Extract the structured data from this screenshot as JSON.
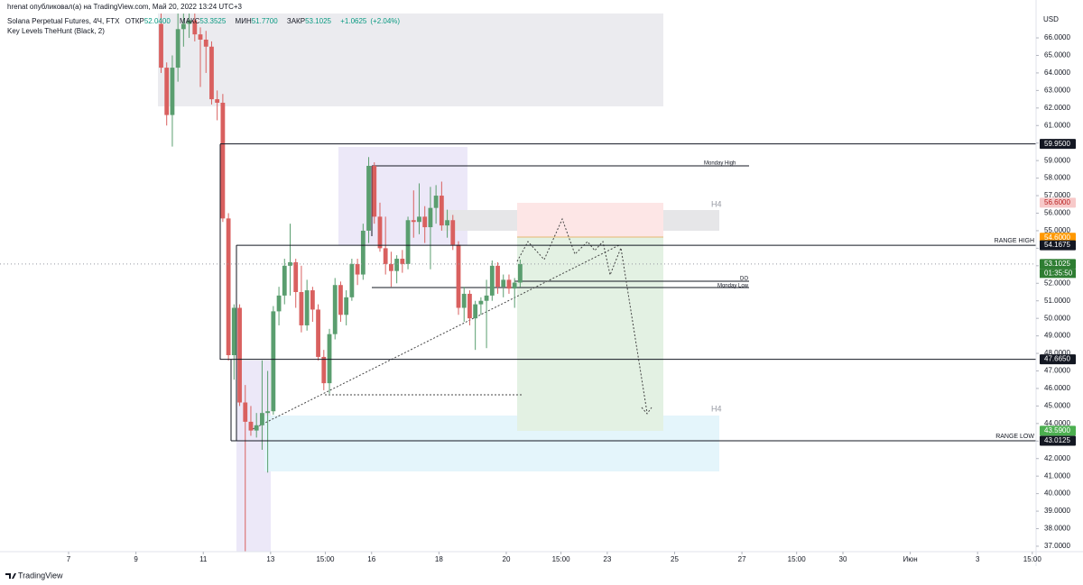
{
  "attribution": "hrenat опубликовал(а) на TradingView.com, Май 20, 2022 13:24 UTC+3",
  "footer": "TradingView",
  "chart_data": {
    "type": "candlestick",
    "title": "Solana Perpetual Futures, 4Ч, FTX",
    "ohlc": [
      {
        "name": "ОТКР",
        "value": 52.04,
        "label": "52.0400"
      },
      {
        "name": "МАКС",
        "value": 53.3525,
        "label": "53.3525"
      },
      {
        "name": "МИН",
        "value": 51.77,
        "label": "51.7700"
      },
      {
        "name": "ЗАКР",
        "value": 53.1025,
        "label": "53.1025"
      }
    ],
    "change": {
      "value": 1.0625,
      "label": "+1.0625"
    },
    "change_pct": {
      "value": 2.04,
      "label": "(+2.04%)"
    },
    "indicator": "Key Levels TheHunt (Black, 2)",
    "currency": "USD",
    "up_color": "#5a9e6f",
    "down_color": "#d9605f",
    "x": [
      9.667,
      9.833,
      10,
      10.167,
      10.333,
      10.5,
      10.667,
      10.833,
      11,
      11.167,
      11.333,
      11.5,
      11.667,
      11.833,
      12,
      12.167,
      12.333,
      12.5,
      12.667,
      12.833,
      13,
      13.167,
      13.333,
      13.5,
      13.667,
      13.833,
      14,
      14.167,
      14.333,
      14.5,
      14.667,
      14.833,
      15,
      15.167,
      15.333,
      15.5,
      15.667,
      15.833,
      16,
      16.167,
      16.333,
      16.5,
      16.667,
      16.833,
      17,
      17.167,
      17.333,
      17.5,
      17.667,
      17.833,
      18,
      18.167,
      18.333,
      18.5,
      18.667,
      18.833,
      19,
      19.167,
      19.333,
      19.5,
      19.667,
      19.833,
      20,
      20.167,
      20.333
    ],
    "open": [
      66.8,
      64.3,
      61.6,
      64.3,
      66.5,
      66.8,
      67.0,
      66.2,
      65.9,
      65.5,
      62.5,
      62.3,
      55.7,
      47.9,
      50.6,
      45.2,
      44.1,
      43.6,
      43.9,
      44.6,
      44.7,
      50.4,
      51.3,
      53.0,
      53.2,
      51.5,
      49.6,
      51.6,
      50.5,
      47.8,
      46.3,
      49.1,
      51.9,
      50.2,
      51.2,
      53.1,
      52.5,
      55.0,
      58.7,
      55.8,
      54.0,
      53.1,
      52.7,
      53.4,
      53.1,
      55.6,
      55.5,
      55.8,
      55.2,
      56.3,
      57.0,
      55.3,
      55.6,
      54.2,
      50.6,
      51.4,
      50.0,
      50.8,
      51.0,
      51.3,
      53.0,
      51.8,
      52.2,
      51.7,
      52.04
    ],
    "high": [
      67.4,
      64.6,
      65.0,
      67.4,
      67.4,
      67.4,
      67.4,
      66.6,
      66.4,
      65.8,
      63.0,
      62.8,
      56.0,
      50.8,
      50.8,
      46.2,
      45.0,
      44.6,
      47.6,
      47.0,
      50.7,
      51.8,
      53.4,
      55.4,
      53.4,
      53.0,
      52.2,
      51.8,
      50.8,
      48.2,
      49.4,
      52.3,
      52.1,
      51.6,
      53.4,
      53.4,
      55.4,
      59.2,
      58.9,
      56.6,
      55.8,
      53.8,
      53.6,
      53.9,
      55.8,
      57.3,
      57.7,
      56.4,
      57.5,
      57.6,
      57.8,
      56.2,
      55.9,
      54.4,
      51.8,
      51.6,
      51.0,
      51.2,
      52.2,
      53.3,
      53.2,
      52.5,
      52.5,
      52.3,
      53.3525
    ],
    "low": [
      64.0,
      61.0,
      59.8,
      63.5,
      65.5,
      66.0,
      65.8,
      63.2,
      64.0,
      62.2,
      61.3,
      55.5,
      47.6,
      46.5,
      45.0,
      36.7,
      43.3,
      43.2,
      42.5,
      41.2,
      44.5,
      49.6,
      50.8,
      51.3,
      50.6,
      49.2,
      49.3,
      49.8,
      47.6,
      45.9,
      45.7,
      48.8,
      49.8,
      49.6,
      51.0,
      51.9,
      52.2,
      54.3,
      55.4,
      53.8,
      52.5,
      51.8,
      52.0,
      52.6,
      52.8,
      54.6,
      54.8,
      54.3,
      52.8,
      55.4,
      55.0,
      54.6,
      53.9,
      50.2,
      49.8,
      49.6,
      48.2,
      50.2,
      48.3,
      51.0,
      51.4,
      51.2,
      51.4,
      50.6,
      51.77
    ],
    "close": [
      64.3,
      61.6,
      64.3,
      66.5,
      66.8,
      67.0,
      66.2,
      65.9,
      65.5,
      62.5,
      62.3,
      55.7,
      47.9,
      50.6,
      45.2,
      44.1,
      43.6,
      43.9,
      44.6,
      44.7,
      50.4,
      51.3,
      53.0,
      53.2,
      51.5,
      49.6,
      51.6,
      50.5,
      47.8,
      46.3,
      49.1,
      51.9,
      50.2,
      51.2,
      53.1,
      52.5,
      55.0,
      58.7,
      55.8,
      54.0,
      53.1,
      52.7,
      53.4,
      53.1,
      55.6,
      55.5,
      55.8,
      55.2,
      56.3,
      57.0,
      55.3,
      55.6,
      54.2,
      50.6,
      51.4,
      50.0,
      50.8,
      51.0,
      51.3,
      53.0,
      51.8,
      52.2,
      51.7,
      52.04,
      53.1025
    ],
    "xlim": [
      4.962,
      35.737
    ],
    "xticks": [
      7,
      9,
      11,
      13,
      {
        "value": 14.625,
        "label": "15:00"
      },
      16,
      18,
      20,
      {
        "value": 21.625,
        "label": "15:00"
      },
      23,
      25,
      27,
      {
        "value": 28.625,
        "label": "15:00"
      },
      30,
      {
        "value": 32,
        "label": "Июн"
      },
      {
        "value": 34,
        "label": "3"
      },
      {
        "value": 35.625,
        "label": "15:00"
      }
    ],
    "ylim": [
      36.69,
      67.39
    ],
    "yticks": [
      {
        "value": 37,
        "label": "37.0000"
      },
      {
        "value": 38,
        "label": "38.0000"
      },
      {
        "value": 39,
        "label": "39.0000"
      },
      {
        "value": 40,
        "label": "40.0000"
      },
      {
        "value": 41,
        "label": "41.0000"
      },
      {
        "value": 42,
        "label": "42.0000"
      },
      {
        "value": 43,
        "label": "43.0000"
      },
      {
        "value": 44,
        "label": "44.0000"
      },
      {
        "value": 45,
        "label": "45.0000"
      },
      {
        "value": 46,
        "label": "46.0000"
      },
      {
        "value": 47,
        "label": "47.0000"
      },
      {
        "value": 48,
        "label": "48.0000"
      },
      {
        "value": 49,
        "label": "49.0000"
      },
      {
        "value": 50,
        "label": "50.0000"
      },
      {
        "value": 51,
        "label": "51.0000"
      },
      {
        "value": 52,
        "label": "52.0000"
      },
      {
        "value": 53,
        "label": "53.0000"
      },
      {
        "value": 54,
        "label": "54.0000"
      },
      {
        "value": 55,
        "label": "55.0000"
      },
      {
        "value": 56,
        "label": "56.0000"
      },
      {
        "value": 57,
        "label": "57.0000"
      },
      {
        "value": 58,
        "label": "58.0000"
      },
      {
        "value": 59,
        "label": "59.0000"
      },
      {
        "value": 60,
        "label": "60.0000"
      },
      {
        "value": 61,
        "label": "61.0000"
      },
      {
        "value": 62,
        "label": "62.0000"
      },
      {
        "value": 63,
        "label": "63.0000"
      },
      {
        "value": 64,
        "label": "64.0000"
      },
      {
        "value": 65,
        "label": "65.0000"
      },
      {
        "value": 66,
        "label": "66.0000"
      }
    ],
    "grid": false,
    "levels": [
      {
        "value": 59.95,
        "label": "59.9500",
        "color": "#131722"
      },
      {
        "value": 56.6,
        "label": "56.6000",
        "color": "#f7c9c9"
      },
      {
        "value": 54.6,
        "label": "54.6000",
        "color": "#ff9800"
      },
      {
        "value": 54.1675,
        "label": "54.1675",
        "color": "#131722",
        "name": "RANGE HIGH"
      },
      {
        "value": 53.1025,
        "label": "53.1025",
        "color": "#2e7d32",
        "countdown": "01:35:50"
      },
      {
        "value": 47.665,
        "label": "47.6650",
        "color": "#131722"
      },
      {
        "value": 43.59,
        "label": "43.5900",
        "color": "#4caf50"
      },
      {
        "value": 43.0125,
        "label": "43.0125",
        "color": "#131722",
        "name": "RANGE LOW"
      }
    ],
    "annotations": [
      "H4",
      "H4",
      "DO",
      "Monday High",
      "Monday Low"
    ]
  }
}
